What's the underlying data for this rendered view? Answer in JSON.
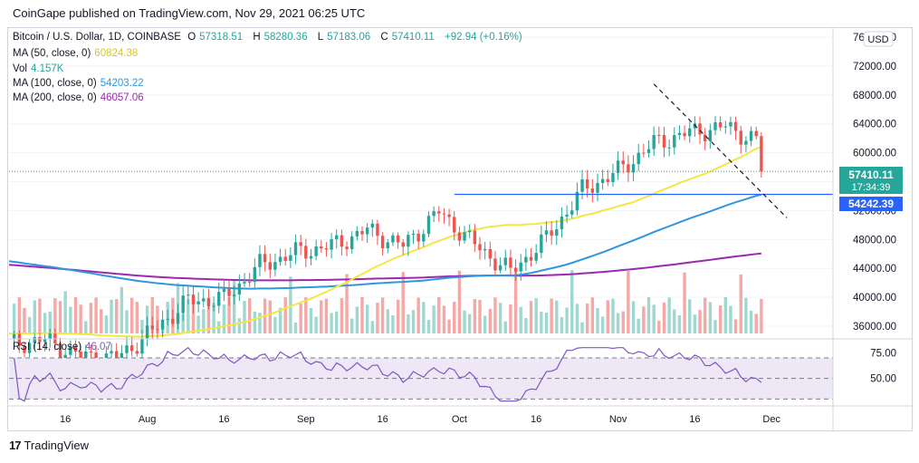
{
  "header": {
    "text": "CoinGape published on TradingView.com, Nov 29, 2021 06:25 UTC"
  },
  "legend": {
    "symbol": "Bitcoin / U.S. Dollar, 1D, COINBASE",
    "o_label": "O",
    "o": "57318.51",
    "h_label": "H",
    "h": "58280.36",
    "l_label": "L",
    "l": "57183.06",
    "c_label": "C",
    "c": "57410.11",
    "change": "+92.94 (+0.16%)",
    "ma50_label": "MA (50, close, 0)",
    "ma50": "60824.38",
    "vol_label": "Vol",
    "vol": "4.157K",
    "ma100_label": "MA (100, close, 0)",
    "ma100": "54203.22",
    "ma200_label": "MA (200, close, 0)",
    "ma200": "46057.06",
    "rsi_label": "RSI (14, close)",
    "rsi": "46.07"
  },
  "price_axis": {
    "ticks": [
      "76000.00",
      "72000.00",
      "68000.00",
      "64000.00",
      "60000.00",
      "56000.00",
      "52000.00",
      "48000.00",
      "44000.00",
      "40000.00",
      "36000.00"
    ],
    "currency": "USD",
    "last_price": "57410.11",
    "countdown": "17:34:39",
    "hline_price": "54242.39"
  },
  "rsi_axis": {
    "ticks": [
      "75.00",
      "50.00"
    ]
  },
  "time_axis": {
    "ticks": [
      "16",
      "Aug",
      "16",
      "Sep",
      "16",
      "Oct",
      "16",
      "Nov",
      "16",
      "Dec"
    ]
  },
  "footer": {
    "logo": "17",
    "brand": "TradingView"
  },
  "colors": {
    "up": "#26a69a",
    "down": "#ef5350",
    "ma50": "#f5e642",
    "ma100": "#2f96e0",
    "ma200": "#9c27b0",
    "hline": "#2962ff",
    "rsi": "#7e57c2",
    "rsi_band": "#ede7f6",
    "vol_up": "#9fd8d0",
    "vol_down": "#f5a8a6"
  },
  "chart_data": {
    "type": "candlestick",
    "title": "Bitcoin / U.S. Dollar, 1D, COINBASE",
    "ylim": [
      35000,
      77000
    ],
    "x_range_dates": [
      "2021-07-05",
      "2021-12-13"
    ],
    "ohlc_summary": {
      "start_date": "2021-07-05",
      "closes_weekly": [
        33500,
        34100,
        31800,
        31600,
        35300,
        39500,
        39800,
        44400,
        46200,
        47100,
        49300,
        47100,
        51800,
        47300,
        43500,
        48100,
        54800,
        57400,
        61300,
        62800,
        63600,
        61400,
        64700,
        60100,
        57300
      ],
      "notes": "Approximate daily OHLC from Jul 2021 to Nov 29 2021; last candle O 57318.51 H 58280.36 L 57183.06 C 57410.11"
    },
    "indicators": {
      "ma50_last": 60824.38,
      "ma100_last": 54203.22,
      "ma200_last": 46057.06,
      "rsi_last": 46.07
    },
    "annotations": {
      "horizontal_line": 54242.39,
      "descending_trendline": [
        {
          "date": "2021-11-08",
          "price": 69500
        },
        {
          "date": "2021-12-04",
          "price": 51000
        }
      ]
    },
    "rsi_levels": [
      70,
      50,
      30
    ]
  }
}
